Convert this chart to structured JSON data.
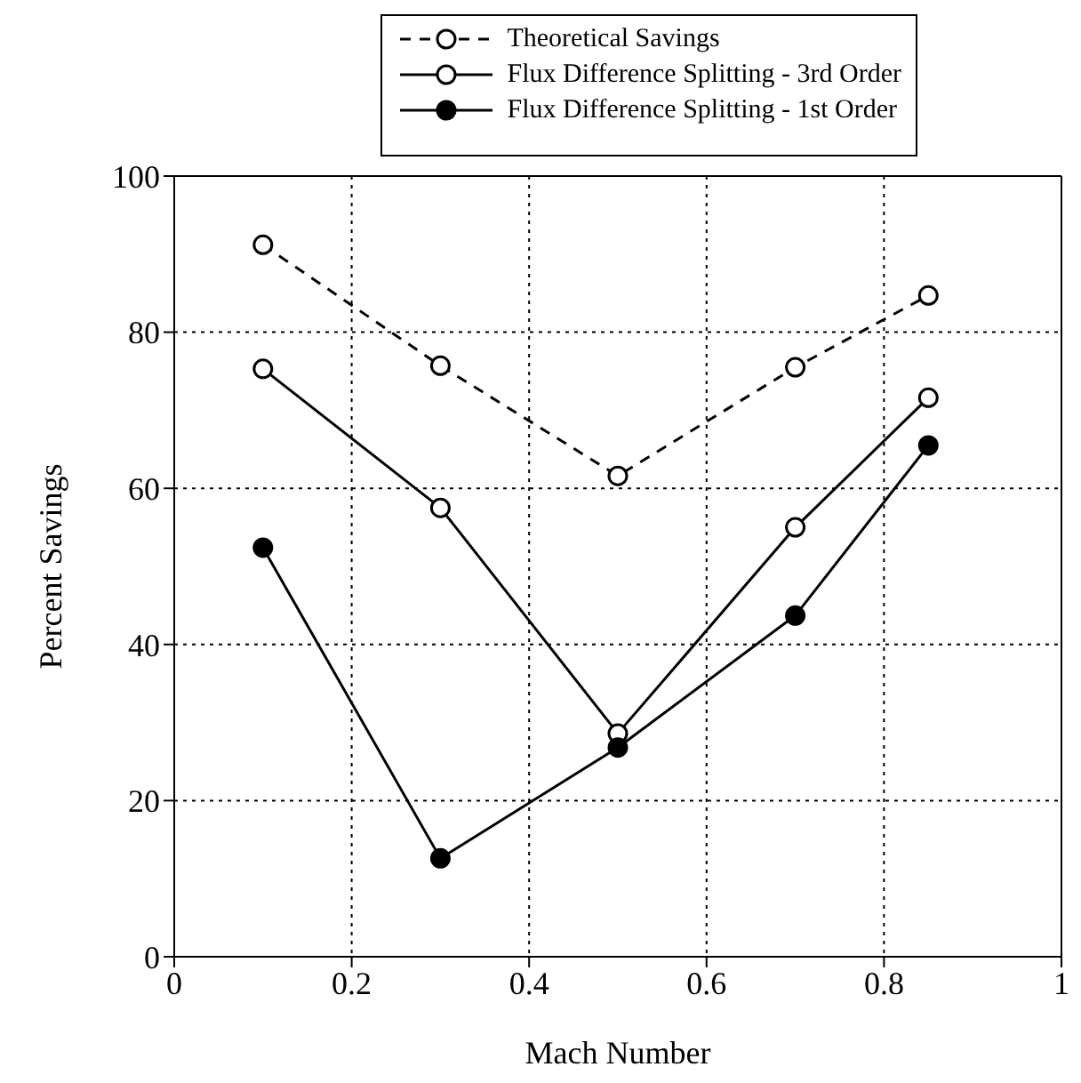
{
  "chart_data": {
    "type": "line",
    "xlabel": "Mach Number",
    "ylabel": "Percent Savings",
    "x": [
      0.1,
      0.3,
      0.5,
      0.7,
      0.85
    ],
    "series": [
      {
        "name": "Theoretical Savings",
        "color": "#000000",
        "values": [
          91.2,
          75.7,
          61.6,
          75.5,
          84.7
        ],
        "line_style": "dashed",
        "marker": "circle",
        "colors": [
          "#ffffff",
          "#ffffff",
          "#ffffff",
          "#ffffff",
          "#ffffff"
        ]
      },
      {
        "name": "Flux Difference Splitting - 3rd Order",
        "color": "#000000",
        "values": [
          75.3,
          57.5,
          28.6,
          55,
          71.6
        ],
        "line_style": "solid",
        "marker": "circle",
        "colors": [
          "#ffffff",
          "#ffffff",
          "#ffffff",
          "#ffffff",
          "#ffffff"
        ]
      },
      {
        "name": "Flux Difference Splitting - 1st Order",
        "color": "#000000",
        "values": [
          52.4,
          12.6,
          26.8,
          43.7,
          65.5
        ],
        "line_style": "solid",
        "marker": "circle",
        "colors": [
          "#000000",
          "#000000",
          "#000000",
          "#000000",
          "#000000"
        ]
      }
    ],
    "xlim": [
      0,
      1
    ],
    "xticks": [
      0,
      0.2,
      0.4,
      0.6,
      0.8,
      1
    ],
    "ylim": [
      0,
      100
    ],
    "yticks": [
      0,
      20,
      40,
      60,
      80,
      100
    ],
    "grid": true,
    "legend": "top"
  }
}
